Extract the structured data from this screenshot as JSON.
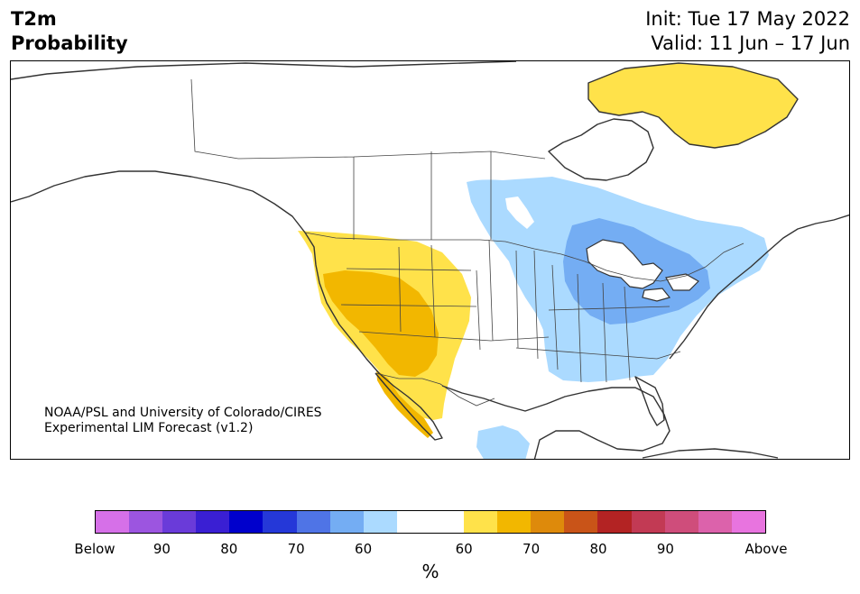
{
  "title": {
    "left_line1": "T2m",
    "left_line2": "Probability",
    "right_line1": "Init: Tue 17 May 2022",
    "right_line2": "Valid: 11 Jun – 17 Jun"
  },
  "credit": {
    "line1": "NOAA/PSL and University of Colorado/CIRES",
    "line2": "Experimental LIM Forecast (v1.2)"
  },
  "colorbar": {
    "unit": "%",
    "colors": [
      "#d670e8",
      "#9c55e0",
      "#6a3bd9",
      "#3a1fd3",
      "#0000cc",
      "#2538d8",
      "#4f74e6",
      "#74adf3",
      "#abdaff",
      "#ffffff",
      "#ffffff",
      "#ffe24a",
      "#f2b700",
      "#de8a0b",
      "#c95418",
      "#b32323",
      "#c23a54",
      "#cf4d7b",
      "#dc62ab",
      "#e874df"
    ],
    "tick_labels": [
      "Below",
      "90",
      "80",
      "70",
      "60",
      "60",
      "70",
      "80",
      "90",
      "Above"
    ]
  },
  "map": {
    "colors": {
      "light_blue": "#abdaff",
      "mid_blue": "#74adf3",
      "yellow": "#ffe24a",
      "gold": "#f2b700",
      "coast": "#333333"
    }
  }
}
